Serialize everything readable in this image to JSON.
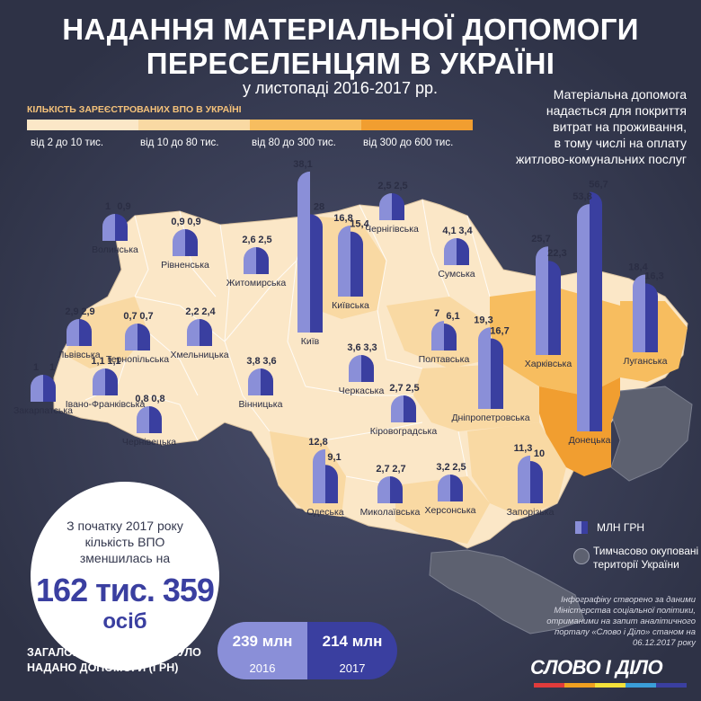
{
  "header": {
    "title_line1": "НАДАННЯ МАТЕРІАЛЬНОЇ ДОПОМОГИ",
    "title_line2": "ПЕРЕСЕЛЕНЦЯМ В УКРАЇНІ",
    "subtitle": "у листопаді 2016-2017 рр."
  },
  "legend": {
    "title": "КІЛЬКІСТЬ ЗАРЕЄСТРОВАНИХ ВПО В УКРАЇНІ",
    "ranges": [
      {
        "label": "від 2 до 10 тис.",
        "color": "#fbe7c7"
      },
      {
        "label": "від 10 до 80 тис.",
        "color": "#f9d9a3"
      },
      {
        "label": "від 80 до 300 тис.",
        "color": "#f7bd5f"
      },
      {
        "label": "від 300 до 600 тис.",
        "color": "#f19e30"
      }
    ],
    "money_label": "МЛН ГРН",
    "occupied_label_1": "Тимчасово окуповані",
    "occupied_label_2": "території України"
  },
  "note": {
    "l1": "Матеріальна допомога",
    "l2": "надається для покриття",
    "l3": "витрат на проживання,",
    "l4": "в тому числі на оплату",
    "l5": "житлово-комунальних послуг"
  },
  "circle": {
    "l1": "З початку 2017 року",
    "l2": "кількість ВПО",
    "l3": "зменшилась на",
    "big": "162 тис. 359",
    "unit": "осіб"
  },
  "totals": {
    "text_1": "ЗАГАЛОМ ЗА ЛИСТОПАД БУЛО",
    "text_2": "НАДАНО ДОПОМОГИ (ГРН)",
    "v2016": "239 млн",
    "y2016": "2016",
    "v2017": "214 млн",
    "y2017": "2017"
  },
  "source": {
    "l1": "Інфографіку створено за даними",
    "l2": "Міністерства соціальної політики,",
    "l3": "отриманими на запит аналітичного",
    "l4": "порталу «Слово і Діло» станом на",
    "l5": "06.12.2017 року"
  },
  "logo": "СЛОВО І ДІЛО",
  "colors": {
    "bg": "#33374d",
    "bar2016": "#8a8fd8",
    "bar2017": "#3a3fa0",
    "occupied": "#5d6170"
  },
  "chart_data": {
    "type": "bar",
    "unit": "МЛН ГРН",
    "series": [
      {
        "year": "2016"
      },
      {
        "year": "2017"
      }
    ],
    "regions": [
      {
        "name": "Волинська",
        "v2016": "1",
        "v2017": "0,9",
        "ipo_class": 0
      },
      {
        "name": "Рівненська",
        "v2016": "0,9",
        "v2017": "0,9",
        "ipo_class": 0
      },
      {
        "name": "Житомирська",
        "v2016": "2,6",
        "v2017": "2,5",
        "ipo_class": 0
      },
      {
        "name": "Київ",
        "v2016": "38,1",
        "v2017": "28",
        "ipo_class": 2
      },
      {
        "name": "Київська",
        "v2016": "16,8",
        "v2017": "15,4",
        "ipo_class": 1
      },
      {
        "name": "Чернігівська",
        "v2016": "2,5",
        "v2017": "2,5",
        "ipo_class": 0
      },
      {
        "name": "Сумська",
        "v2016": "4,1",
        "v2017": "3,4",
        "ipo_class": 0
      },
      {
        "name": "Харківська",
        "v2016": "25,7",
        "v2017": "22,3",
        "ipo_class": 2
      },
      {
        "name": "Луганська",
        "v2016": "18,4",
        "v2017": "16,3",
        "ipo_class": 2
      },
      {
        "name": "Донецька",
        "v2016": "53,8",
        "v2017": "56,7",
        "ipo_class": 3
      },
      {
        "name": "Львівська",
        "v2016": "2,9",
        "v2017": "2,9",
        "ipo_class": 1
      },
      {
        "name": "Тернопільська",
        "v2016": "0,7",
        "v2017": "0,7",
        "ipo_class": 0
      },
      {
        "name": "Хмельницька",
        "v2016": "2,2",
        "v2017": "2,4",
        "ipo_class": 0
      },
      {
        "name": "Вінницька",
        "v2016": "3,8",
        "v2017": "3,6",
        "ipo_class": 0
      },
      {
        "name": "Черкаська",
        "v2016": "3,6",
        "v2017": "3,3",
        "ipo_class": 0
      },
      {
        "name": "Полтавська",
        "v2016": "7",
        "v2017": "6,1",
        "ipo_class": 1
      },
      {
        "name": "Дніпропетровська",
        "v2016": "19,3",
        "v2017": "16,7",
        "ipo_class": 1
      },
      {
        "name": "Закарпатська",
        "v2016": "1",
        "v2017": "1",
        "ipo_class": 0
      },
      {
        "name": "Івано-Франківська",
        "v2016": "1,1",
        "v2017": "1,1",
        "ipo_class": 0
      },
      {
        "name": "Чернівецька",
        "v2016": "0,8",
        "v2017": "0,8",
        "ipo_class": 0
      },
      {
        "name": "Кіровоградська",
        "v2016": "2,7",
        "v2017": "2,5",
        "ipo_class": 0
      },
      {
        "name": "Одеська",
        "v2016": "12,8",
        "v2017": "9,1",
        "ipo_class": 1
      },
      {
        "name": "Миколаївська",
        "v2016": "2,7",
        "v2017": "2,7",
        "ipo_class": 0
      },
      {
        "name": "Херсонська",
        "v2016": "3,2",
        "v2017": "2,5",
        "ipo_class": 1
      },
      {
        "name": "Запорізька",
        "v2016": "11,3",
        "v2017": "10",
        "ipo_class": 1
      }
    ]
  }
}
